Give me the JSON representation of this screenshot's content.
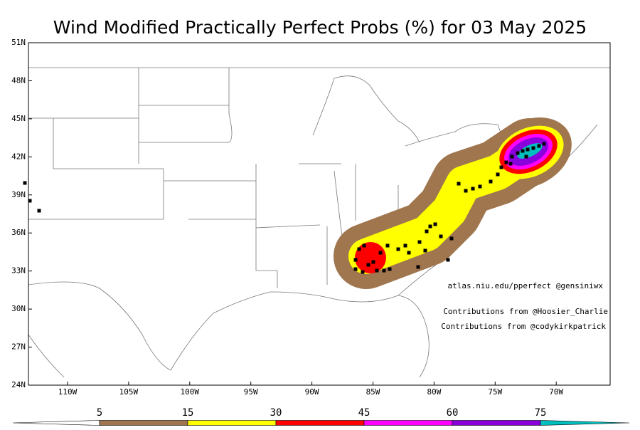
{
  "header": {
    "title": "Wind Modified Practically Perfect Probs (%) for 03 May 2025"
  },
  "map": {
    "lat_labels": [
      "51N",
      "48N",
      "45N",
      "42N",
      "39N",
      "36N",
      "33N",
      "30N",
      "27N",
      "24N"
    ],
    "lon_labels": [
      "110W",
      "105W",
      "100W",
      "95W",
      "90W",
      "85W",
      "80W",
      "75W",
      "70W"
    ]
  },
  "annotations": [
    "atlas.niu.edu/pperfect @gensiniwx",
    "Contributions from @Hoosier_Charlie",
    "Contributions from @codykirkpatrick"
  ],
  "colorbar": {
    "labels": [
      "5",
      "15",
      "30",
      "45",
      "60",
      "75"
    ],
    "colors": [
      "#ffffff",
      "#a0764f",
      "#ffff00",
      "#ff0000",
      "#ff00ff",
      "#8a00dd",
      "#00bfbf"
    ]
  }
}
